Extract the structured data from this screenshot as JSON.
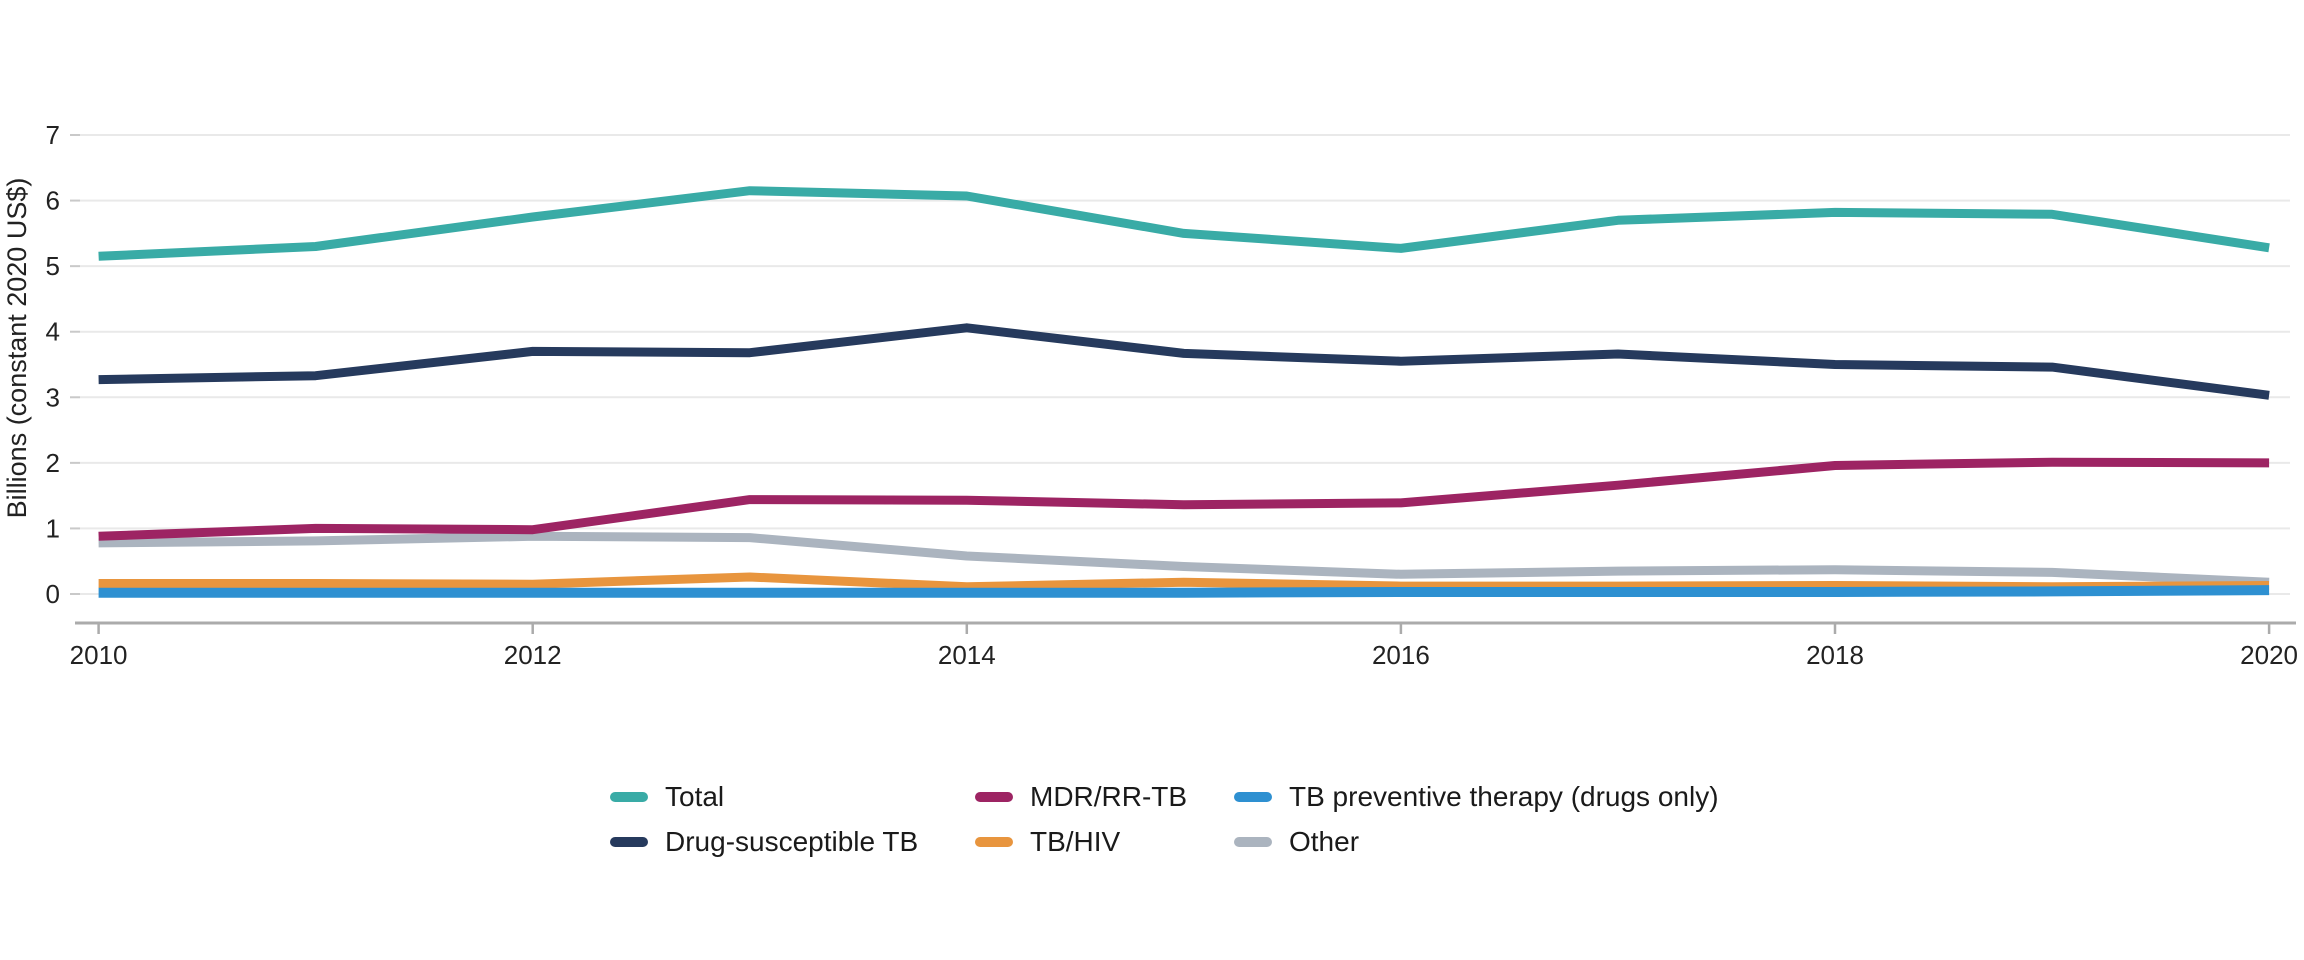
{
  "chart_data": {
    "type": "line",
    "title": "",
    "xlabel": "",
    "ylabel": "Billions (constant 2020 US$)",
    "x": [
      2010,
      2011,
      2012,
      2013,
      2014,
      2015,
      2016,
      2017,
      2018,
      2019,
      2020
    ],
    "x_tick_labels": [
      "2010",
      "2012",
      "2014",
      "2016",
      "2018",
      "2020"
    ],
    "x_ticks": [
      2010,
      2012,
      2014,
      2016,
      2018,
      2020
    ],
    "y_ticks": [
      0,
      1,
      2,
      3,
      4,
      5,
      6,
      7
    ],
    "ylim": [
      0,
      7
    ],
    "xlim": [
      2010,
      2020
    ],
    "grid": "horizontal",
    "legend_position": "bottom",
    "series": [
      {
        "name": "Total",
        "color": "#39aba6",
        "values": [
          5.15,
          5.3,
          5.75,
          6.15,
          6.07,
          5.5,
          5.27,
          5.7,
          5.82,
          5.79,
          5.28
        ]
      },
      {
        "name": "Drug-susceptible TB",
        "color": "#263a5d",
        "values": [
          3.27,
          3.33,
          3.7,
          3.68,
          4.06,
          3.67,
          3.55,
          3.66,
          3.5,
          3.46,
          3.03
        ]
      },
      {
        "name": "MDR/RR-TB",
        "color": "#9d2463",
        "values": [
          0.88,
          1.0,
          0.98,
          1.44,
          1.43,
          1.36,
          1.39,
          1.66,
          1.96,
          2.01,
          2.0
        ]
      },
      {
        "name": "TB/HIV",
        "color": "#e8953e",
        "values": [
          0.16,
          0.16,
          0.15,
          0.26,
          0.11,
          0.18,
          0.12,
          0.12,
          0.13,
          0.11,
          0.13
        ]
      },
      {
        "name": "TB preventive therapy (drugs only)",
        "color": "#2e90d1",
        "values": [
          0.02,
          0.02,
          0.02,
          0.02,
          0.02,
          0.02,
          0.03,
          0.03,
          0.03,
          0.04,
          0.06
        ]
      },
      {
        "name": "Other",
        "color": "#abb4bf",
        "values": [
          0.78,
          0.81,
          0.88,
          0.86,
          0.58,
          0.42,
          0.3,
          0.35,
          0.37,
          0.33,
          0.18
        ]
      }
    ]
  },
  "colors": {
    "background": "#ffffff",
    "gridline": "#e9e9e9",
    "y_tick": "#c9c9c9",
    "x_axis": "#ababab",
    "text": "#222222"
  }
}
